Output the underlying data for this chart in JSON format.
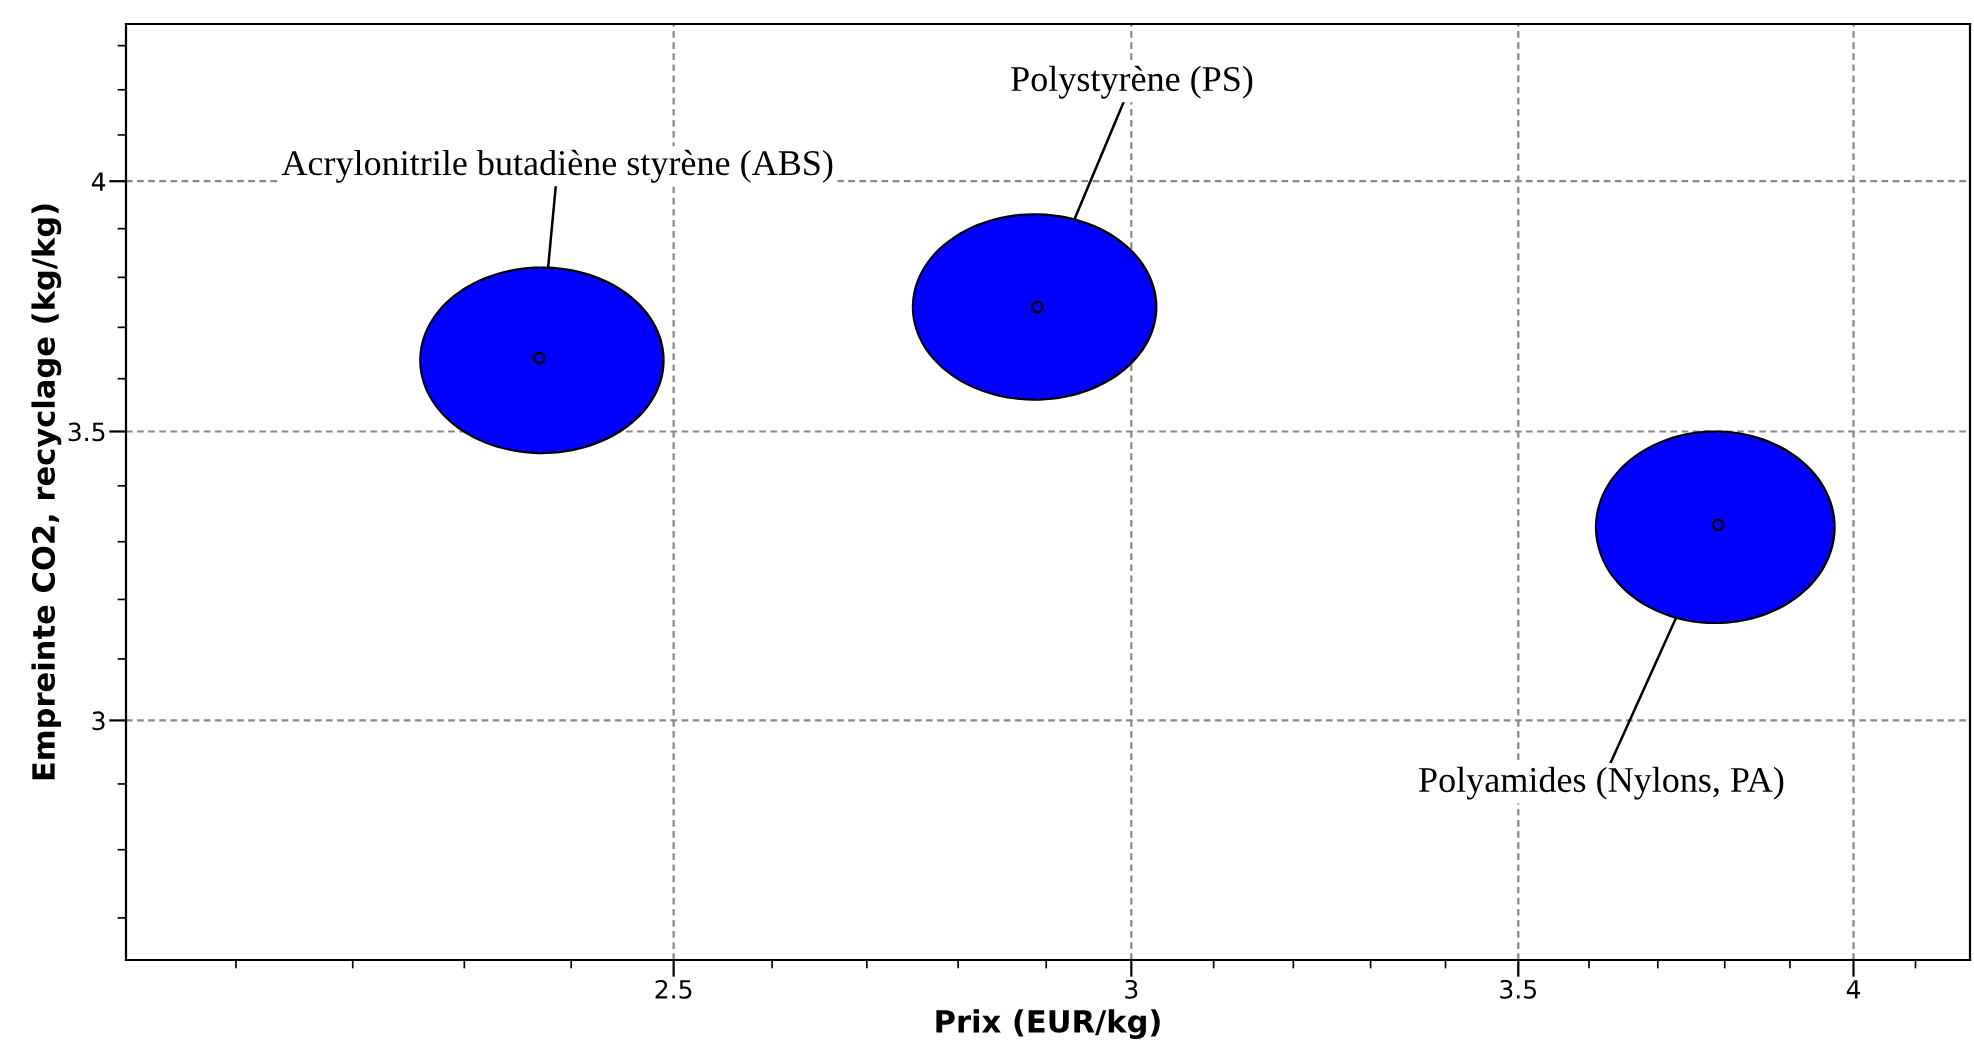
{
  "chart_data": {
    "type": "scatter",
    "xlabel": "Prix (EUR/kg)",
    "ylabel": "Empreinte CO2, recyclage (kg/kg)",
    "log": "xy",
    "grid": true,
    "xlim": [
      2.01,
      4.19
    ],
    "ylim": [
      2.64,
      4.35
    ],
    "xticks": [
      {
        "value": 2.1,
        "label": null
      },
      {
        "value": 2.2,
        "label": null
      },
      {
        "value": 2.3,
        "label": null
      },
      {
        "value": 2.4,
        "label": null
      },
      2.5,
      {
        "value": 2.6,
        "label": null
      },
      {
        "value": 2.7,
        "label": null
      },
      {
        "value": 2.8,
        "label": null
      },
      {
        "value": 2.9,
        "label": null
      },
      3,
      {
        "value": 3.1,
        "label": null
      },
      {
        "value": 3.2,
        "label": null
      },
      {
        "value": 3.3,
        "label": null
      },
      {
        "value": 3.4,
        "label": null
      },
      3.5,
      {
        "value": 3.6,
        "label": null
      },
      {
        "value": 3.7,
        "label": null
      },
      {
        "value": 3.8,
        "label": null
      },
      {
        "value": 3.9,
        "label": null
      },
      4,
      {
        "value": 4.1,
        "label": null
      }
    ],
    "yticks": [
      {
        "value": 2.7,
        "label": null
      },
      {
        "value": 2.8,
        "label": null
      },
      {
        "value": 2.9,
        "label": null
      },
      3,
      {
        "value": 3.1,
        "label": null
      },
      {
        "value": 3.2,
        "label": null
      },
      {
        "value": 3.3,
        "label": null
      },
      {
        "value": 3.4,
        "label": null
      },
      3.5,
      {
        "value": 3.6,
        "label": null
      },
      {
        "value": 3.7,
        "label": null
      },
      {
        "value": 3.8,
        "label": null
      },
      {
        "value": 3.9,
        "label": null
      },
      4,
      {
        "value": 4.1,
        "label": null
      },
      {
        "value": 4.2,
        "label": null
      },
      {
        "value": 4.3,
        "label": null
      }
    ],
    "series": [
      {
        "name": "Acrylonitrile butadiène styrène (ABS)",
        "color": "#0000ff",
        "x": [
          2.37
        ],
        "values": [
          3.64
        ],
        "xerrors": [
          [
            2.26,
            2.49
          ]
        ],
        "errors": [
          [
            3.46,
            3.82
          ]
        ]
      },
      {
        "name": "Polystyrène (PS)",
        "color": "#0000ff",
        "x": [
          2.89
        ],
        "values": [
          3.74
        ],
        "xerrors": [
          [
            2.75,
            3.03
          ]
        ],
        "errors": [
          [
            3.56,
            3.93
          ]
        ]
      },
      {
        "name": "Polyamides (Nylons, PA)",
        "color": "#0000ff",
        "x": [
          3.79
        ],
        "values": [
          3.33
        ],
        "xerrors": [
          [
            3.61,
            3.97
          ]
        ],
        "errors": [
          [
            3.16,
            3.5
          ]
        ]
      }
    ]
  }
}
